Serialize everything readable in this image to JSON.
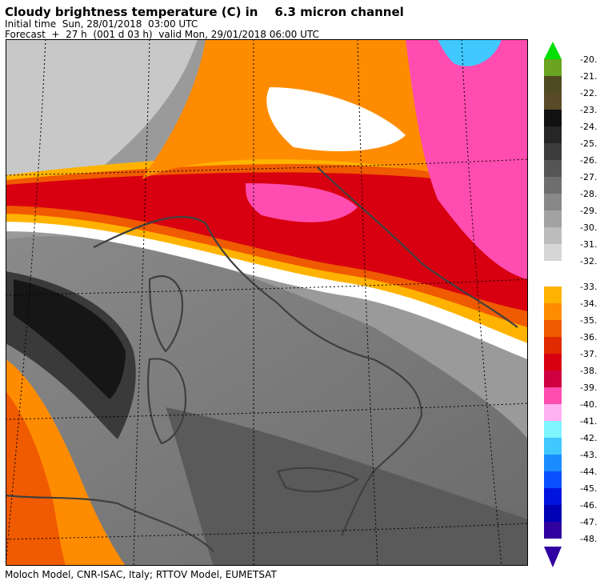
{
  "header": {
    "title": "Cloudy brightness temperature (C) in    6.3 micron channel",
    "initial_time": "Initial time  Sun, 28/01/2018  03:00 UTC",
    "forecast": "Forecast  +  27 h  (001 d 03 h)  valid Mon, 29/01/2018 06:00 UTC"
  },
  "footer": {
    "credit": "Moloch Model, CNR-ISAC, Italy; RTTOV Model, EUMETSAT"
  },
  "legend": {
    "upper_block": [
      {
        "label": "-20.",
        "color": "#6aa420"
      },
      {
        "label": "-21.",
        "color": "#4e4a22"
      },
      {
        "label": "-22.",
        "color": "#5a4a28"
      },
      {
        "label": "-23.",
        "color": "#111111"
      },
      {
        "label": "-24.",
        "color": "#262626"
      },
      {
        "label": "-25.",
        "color": "#3c3c3c"
      },
      {
        "label": "-26.",
        "color": "#555555"
      },
      {
        "label": "-27.",
        "color": "#6e6e6e"
      },
      {
        "label": "-28.",
        "color": "#888888"
      },
      {
        "label": "-29.",
        "color": "#a2a2a2"
      },
      {
        "label": "-30.",
        "color": "#bcbcbc"
      },
      {
        "label": "-31.",
        "color": "#d6d6d6"
      },
      {
        "label": "-32.",
        "color": null
      }
    ],
    "lower_block": [
      {
        "label": "-33.",
        "color": "#ffb300"
      },
      {
        "label": "-34.",
        "color": "#ff8c00"
      },
      {
        "label": "-35.",
        "color": "#f05a00"
      },
      {
        "label": "-36.",
        "color": "#e02a00"
      },
      {
        "label": "-37.",
        "color": "#d80010"
      },
      {
        "label": "-38.",
        "color": "#d00040"
      },
      {
        "label": "-39.",
        "color": "#ff4cb0"
      },
      {
        "label": "-40.",
        "color": "#ffb0f0"
      },
      {
        "label": "-41.",
        "color": "#80f4ff"
      },
      {
        "label": "-42.",
        "color": "#40c8ff"
      },
      {
        "label": "-43.",
        "color": "#1a8cff"
      },
      {
        "label": "-44.",
        "color": "#0a50ff"
      },
      {
        "label": "-45.",
        "color": "#0014e0"
      },
      {
        "label": "-46.",
        "color": "#0000b4"
      },
      {
        "label": "-47.",
        "color": "#3000a0"
      },
      {
        "label": "-48.",
        "color": null
      }
    ]
  }
}
